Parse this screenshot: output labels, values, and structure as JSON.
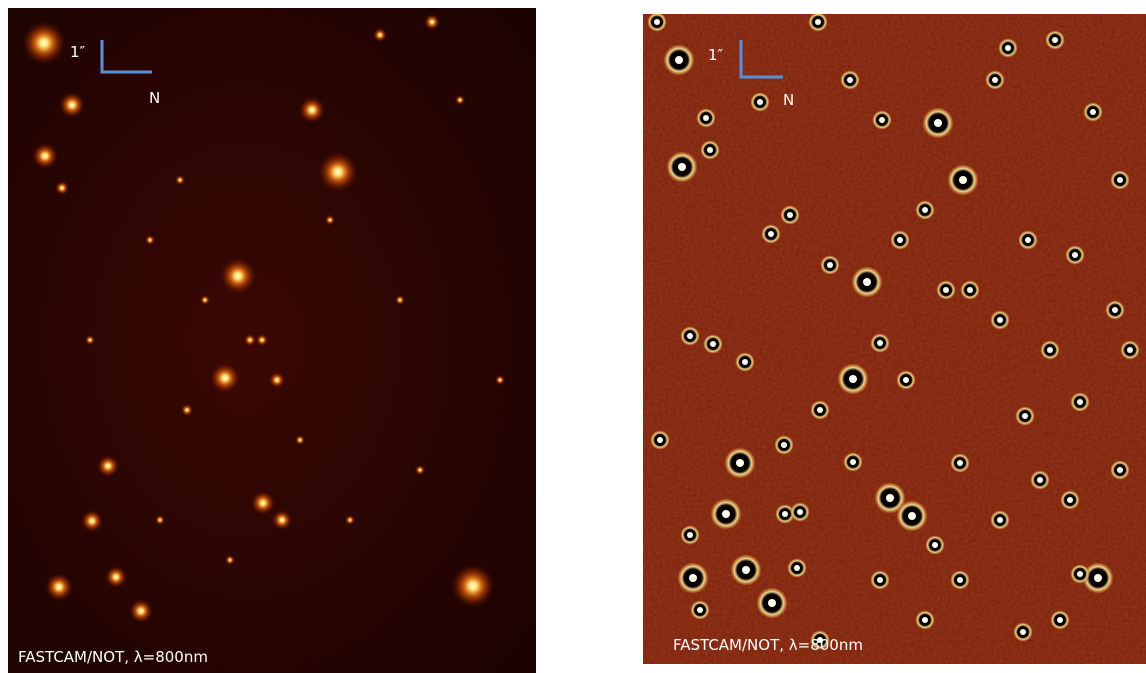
{
  "panels": [
    {
      "scale_label": "1″",
      "north_label": "N",
      "caption": "FASTCAM/NOT, λ=800nm"
    },
    {
      "scale_label": "1″",
      "north_label": "N",
      "caption": "FASTCAM/NOT, λ=800nm"
    }
  ]
}
